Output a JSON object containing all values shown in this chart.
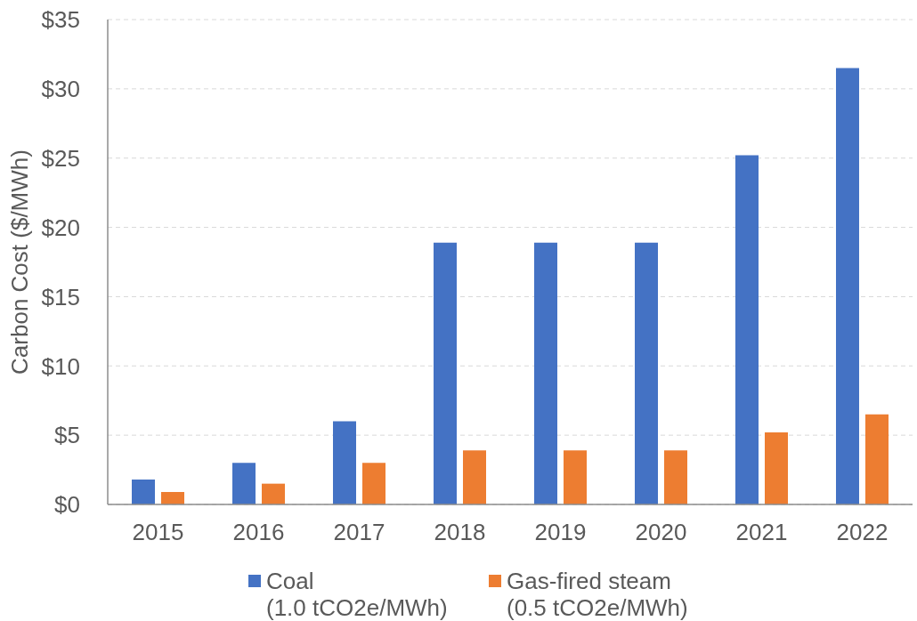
{
  "chart_data": {
    "type": "bar",
    "ylabel": "Carbon Cost ($/MWh)",
    "categories": [
      "2015",
      "2016",
      "2017",
      "2018",
      "2019",
      "2020",
      "2021",
      "2022"
    ],
    "series": [
      {
        "name": "Coal\n(1.0 tCO2e/MWh)",
        "color": "#4472c4",
        "values": [
          1.8,
          3.0,
          6.0,
          18.9,
          18.9,
          18.9,
          25.2,
          31.5
        ]
      },
      {
        "name": "Gas-fired steam\n(0.5 tCO2e/MWh)",
        "color": "#ed7d31",
        "values": [
          0.9,
          1.5,
          3.0,
          3.9,
          3.9,
          3.9,
          5.2,
          6.5
        ]
      }
    ],
    "ylim": [
      0,
      35
    ],
    "yticks": [
      {
        "value": 0,
        "label": "$0"
      },
      {
        "value": 5,
        "label": "$5"
      },
      {
        "value": 10,
        "label": "$10"
      },
      {
        "value": 15,
        "label": "$15"
      },
      {
        "value": 20,
        "label": "$20"
      },
      {
        "value": 25,
        "label": "$25"
      },
      {
        "value": 30,
        "label": "$30"
      },
      {
        "value": 35,
        "label": "$35"
      }
    ],
    "grid": "y",
    "legend": "bottom"
  }
}
